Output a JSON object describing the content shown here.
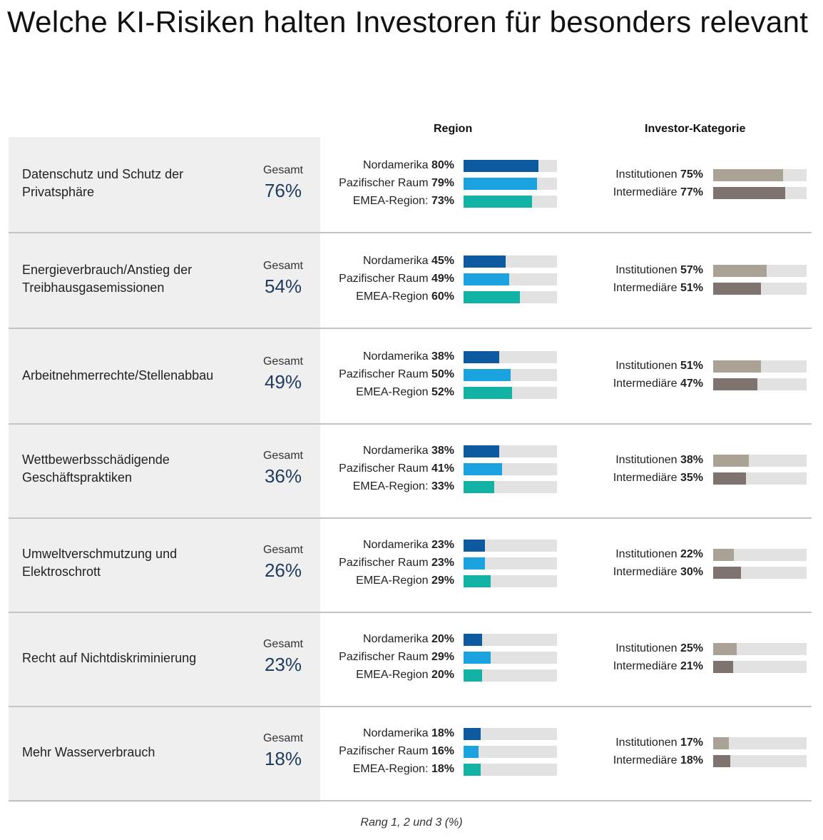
{
  "title": "Welche KI-Risiken halten Investoren für besonders relevant",
  "region_header": "Region",
  "investor_header": "Investor-Kategorie",
  "gesamt_label": "Gesamt",
  "footnote": "Rang 1, 2 und 3 (%)",
  "colors": {
    "Nordamerika": "#0d5aa0",
    "Pazifischer Raum": "#1ba3e0",
    "EMEA-Region": "#12b2a4",
    "Institutionen": "#aba296",
    "Intermediäre": "#7f7370",
    "track": "#e2e2e2",
    "gesamt": "#1f3b5e"
  },
  "chart_data": {
    "type": "bar",
    "title": "Welche KI-Risiken halten Investoren für besonders relevant",
    "xlabel": "",
    "ylabel": "",
    "unit": "%",
    "xlim": [
      0,
      100
    ],
    "groups": [
      "Region",
      "Investor-Kategorie"
    ],
    "categories": [
      {
        "name": "Datenschutz und Schutz der Privatsphäre",
        "total": 76,
        "region": [
          {
            "name": "Nordamerika",
            "value": 80
          },
          {
            "name": "Pazifischer Raum",
            "value": 79
          },
          {
            "name": "EMEA-Region:",
            "value": 73
          }
        ],
        "investor": [
          {
            "name": "Institutionen",
            "value": 75
          },
          {
            "name": "Intermediäre",
            "value": 77
          }
        ]
      },
      {
        "name": "Energieverbrauch/Anstieg der Treibhausgasemissionen",
        "total": 54,
        "region": [
          {
            "name": "Nordamerika",
            "value": 45
          },
          {
            "name": "Pazifischer Raum",
            "value": 49
          },
          {
            "name": "EMEA-Region",
            "value": 60
          }
        ],
        "investor": [
          {
            "name": "Institutionen",
            "value": 57
          },
          {
            "name": "Intermediäre",
            "value": 51
          }
        ]
      },
      {
        "name": "Arbeitnehmerrechte/Stellenabbau",
        "total": 49,
        "region": [
          {
            "name": "Nordamerika",
            "value": 38
          },
          {
            "name": "Pazifischer Raum",
            "value": 50
          },
          {
            "name": "EMEA-Region",
            "value": 52
          }
        ],
        "investor": [
          {
            "name": "Institutionen",
            "value": 51
          },
          {
            "name": "Intermediäre",
            "value": 47
          }
        ]
      },
      {
        "name": "Wettbewerbsschädigende Geschäftspraktiken",
        "total": 36,
        "region": [
          {
            "name": "Nordamerika",
            "value": 38
          },
          {
            "name": "Pazifischer Raum",
            "value": 41
          },
          {
            "name": "EMEA-Region:",
            "value": 33
          }
        ],
        "investor": [
          {
            "name": "Institutionen",
            "value": 38
          },
          {
            "name": "Intermediäre",
            "value": 35
          }
        ]
      },
      {
        "name": "Umweltverschmutzung und Elektroschrott",
        "total": 26,
        "region": [
          {
            "name": "Nordamerika",
            "value": 23
          },
          {
            "name": "Pazifischer Raum",
            "value": 23
          },
          {
            "name": "EMEA-Region",
            "value": 29
          }
        ],
        "investor": [
          {
            "name": "Institutionen",
            "value": 22
          },
          {
            "name": "Intermediäre",
            "value": 30
          }
        ]
      },
      {
        "name": "Recht auf Nichtdiskriminierung",
        "total": 23,
        "region": [
          {
            "name": "Nordamerika",
            "value": 20
          },
          {
            "name": "Pazifischer Raum",
            "value": 29
          },
          {
            "name": "EMEA-Region",
            "value": 20
          }
        ],
        "investor": [
          {
            "name": "Institutionen",
            "value": 25
          },
          {
            "name": "Intermediäre",
            "value": 21
          }
        ]
      },
      {
        "name": "Mehr Wasserverbrauch",
        "total": 18,
        "region": [
          {
            "name": "Nordamerika",
            "value": 18
          },
          {
            "name": "Pazifischer Raum",
            "value": 16
          },
          {
            "name": "EMEA-Region:",
            "value": 18
          }
        ],
        "investor": [
          {
            "name": "Institutionen",
            "value": 17
          },
          {
            "name": "Intermediäre",
            "value": 18
          }
        ]
      }
    ]
  }
}
